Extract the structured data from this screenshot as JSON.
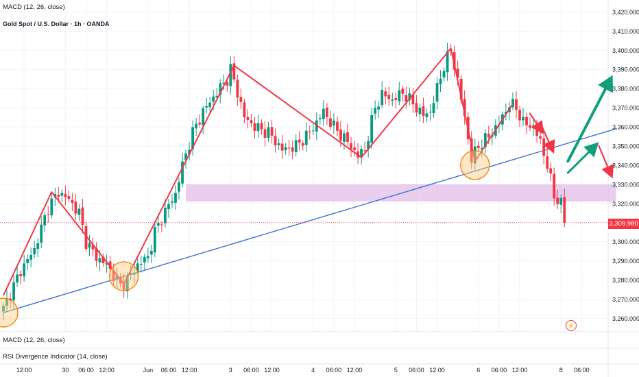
{
  "header": {
    "indicator_top": "MACD (12, 26, close)",
    "symbol_title": "Gold Spot / U.S. Dollar · 1h · OANDA"
  },
  "footer": {
    "indicator_macd": "MACD (12, 26, close)",
    "indicator_rsi": "RSI Divergence Indicator (14, close)"
  },
  "colors": {
    "up": "#089981",
    "down": "#f23645",
    "trendline": "#3d6fd6",
    "zigzag": "#f23645",
    "zone": "#e1bee7",
    "circle_fill": "#ffcc80",
    "circle_stroke": "#f57c00",
    "arrow_up": "#119e7c",
    "arrow_down": "#f23645"
  },
  "chart_data": {
    "type": "candlestick",
    "symbol": "Gold Spot / U.S. Dollar",
    "interval": "1h",
    "source": "OANDA",
    "y_ticks": [
      "3,420.000",
      "3,410.000",
      "3,400.000",
      "3,390.000",
      "3,380.000",
      "3,370.000",
      "3,360.000",
      "3,350.000",
      "3,340.000",
      "3,330.000",
      "3,320.000",
      "3,310.000",
      "3,300.000",
      "3,290.000",
      "3,280.000",
      "3,270.000",
      "3,260.000"
    ],
    "y_tick_values": [
      3420,
      3410,
      3400,
      3390,
      3380,
      3370,
      3360,
      3350,
      3340,
      3330,
      3320,
      3310,
      3300,
      3290,
      3280,
      3270,
      3260
    ],
    "ylim": [
      3253,
      3423
    ],
    "x_ticks": [
      "12:00",
      "30",
      "06:00",
      "12:00",
      "Jun",
      "06:00",
      "12:00",
      "3",
      "06:00",
      "12:00",
      "4",
      "06:00",
      "12:00",
      "5",
      "06:00",
      "12:00",
      "6",
      "06:00",
      "12:00",
      "8",
      "06:00"
    ],
    "x_tick_index": [
      6,
      18,
      24,
      30,
      42,
      48,
      54,
      66,
      72,
      78,
      90,
      96,
      102,
      114,
      120,
      126,
      138,
      144,
      150,
      162,
      168
    ],
    "last_price": "3,309.980",
    "last_price_value": 3309.98,
    "anchors": [
      [
        0,
        3265
      ],
      [
        5,
        3285
      ],
      [
        9,
        3296
      ],
      [
        13,
        3318
      ],
      [
        16,
        3326
      ],
      [
        19,
        3322
      ],
      [
        22,
        3315
      ],
      [
        24,
        3300
      ],
      [
        27,
        3292
      ],
      [
        30,
        3288
      ],
      [
        34,
        3277
      ],
      [
        36,
        3280
      ],
      [
        39,
        3288
      ],
      [
        42,
        3292
      ],
      [
        44,
        3305
      ],
      [
        47,
        3316
      ],
      [
        50,
        3325
      ],
      [
        52,
        3340
      ],
      [
        55,
        3357
      ],
      [
        58,
        3368
      ],
      [
        62,
        3378
      ],
      [
        65,
        3385
      ],
      [
        66,
        3390
      ],
      [
        68,
        3378
      ],
      [
        70,
        3365
      ],
      [
        73,
        3360
      ],
      [
        77,
        3357
      ],
      [
        81,
        3348
      ],
      [
        85,
        3350
      ],
      [
        89,
        3357
      ],
      [
        93,
        3368
      ],
      [
        96,
        3360
      ],
      [
        100,
        3352
      ],
      [
        103,
        3345
      ],
      [
        105,
        3348
      ],
      [
        108,
        3370
      ],
      [
        110,
        3377
      ],
      [
        113,
        3374
      ],
      [
        116,
        3378
      ],
      [
        119,
        3372
      ],
      [
        122,
        3366
      ],
      [
        124,
        3368
      ],
      [
        126,
        3380
      ],
      [
        128,
        3392
      ],
      [
        130,
        3400
      ],
      [
        132,
        3384
      ],
      [
        134,
        3365
      ],
      [
        136,
        3343
      ],
      [
        138,
        3350
      ],
      [
        141,
        3355
      ],
      [
        144,
        3362
      ],
      [
        147,
        3372
      ],
      [
        149,
        3370
      ],
      [
        151,
        3362
      ],
      [
        154,
        3360
      ],
      [
        156,
        3352
      ],
      [
        158,
        3340
      ],
      [
        160,
        3324
      ],
      [
        162,
        3320
      ],
      [
        163,
        3310
      ]
    ],
    "trendline": {
      "label": "rising trendline",
      "from": [
        0,
        3263
      ],
      "to": [
        178,
        3359
      ]
    },
    "zigzag": [
      [
        0,
        3272
      ],
      [
        14,
        3326
      ],
      [
        35,
        3278
      ],
      [
        67,
        3392
      ],
      [
        104,
        3344
      ],
      [
        130,
        3401
      ],
      [
        137,
        3342
      ],
      [
        148,
        3372
      ]
    ],
    "zone": {
      "from_index": 53,
      "to_index": 178,
      "low": 3321,
      "high": 3330
    },
    "circles": [
      [
        0,
        3263
      ],
      [
        35,
        3282
      ],
      [
        137,
        3340
      ]
    ],
    "arrows_up": [
      [
        164,
        3342,
        177,
        3387
      ],
      [
        164,
        3336,
        173,
        3352
      ]
    ],
    "arrows_down": [
      [
        153,
        3367,
        157,
        3356
      ],
      [
        156,
        3362,
        160,
        3346
      ],
      [
        173,
        3350,
        177,
        3333
      ]
    ]
  }
}
